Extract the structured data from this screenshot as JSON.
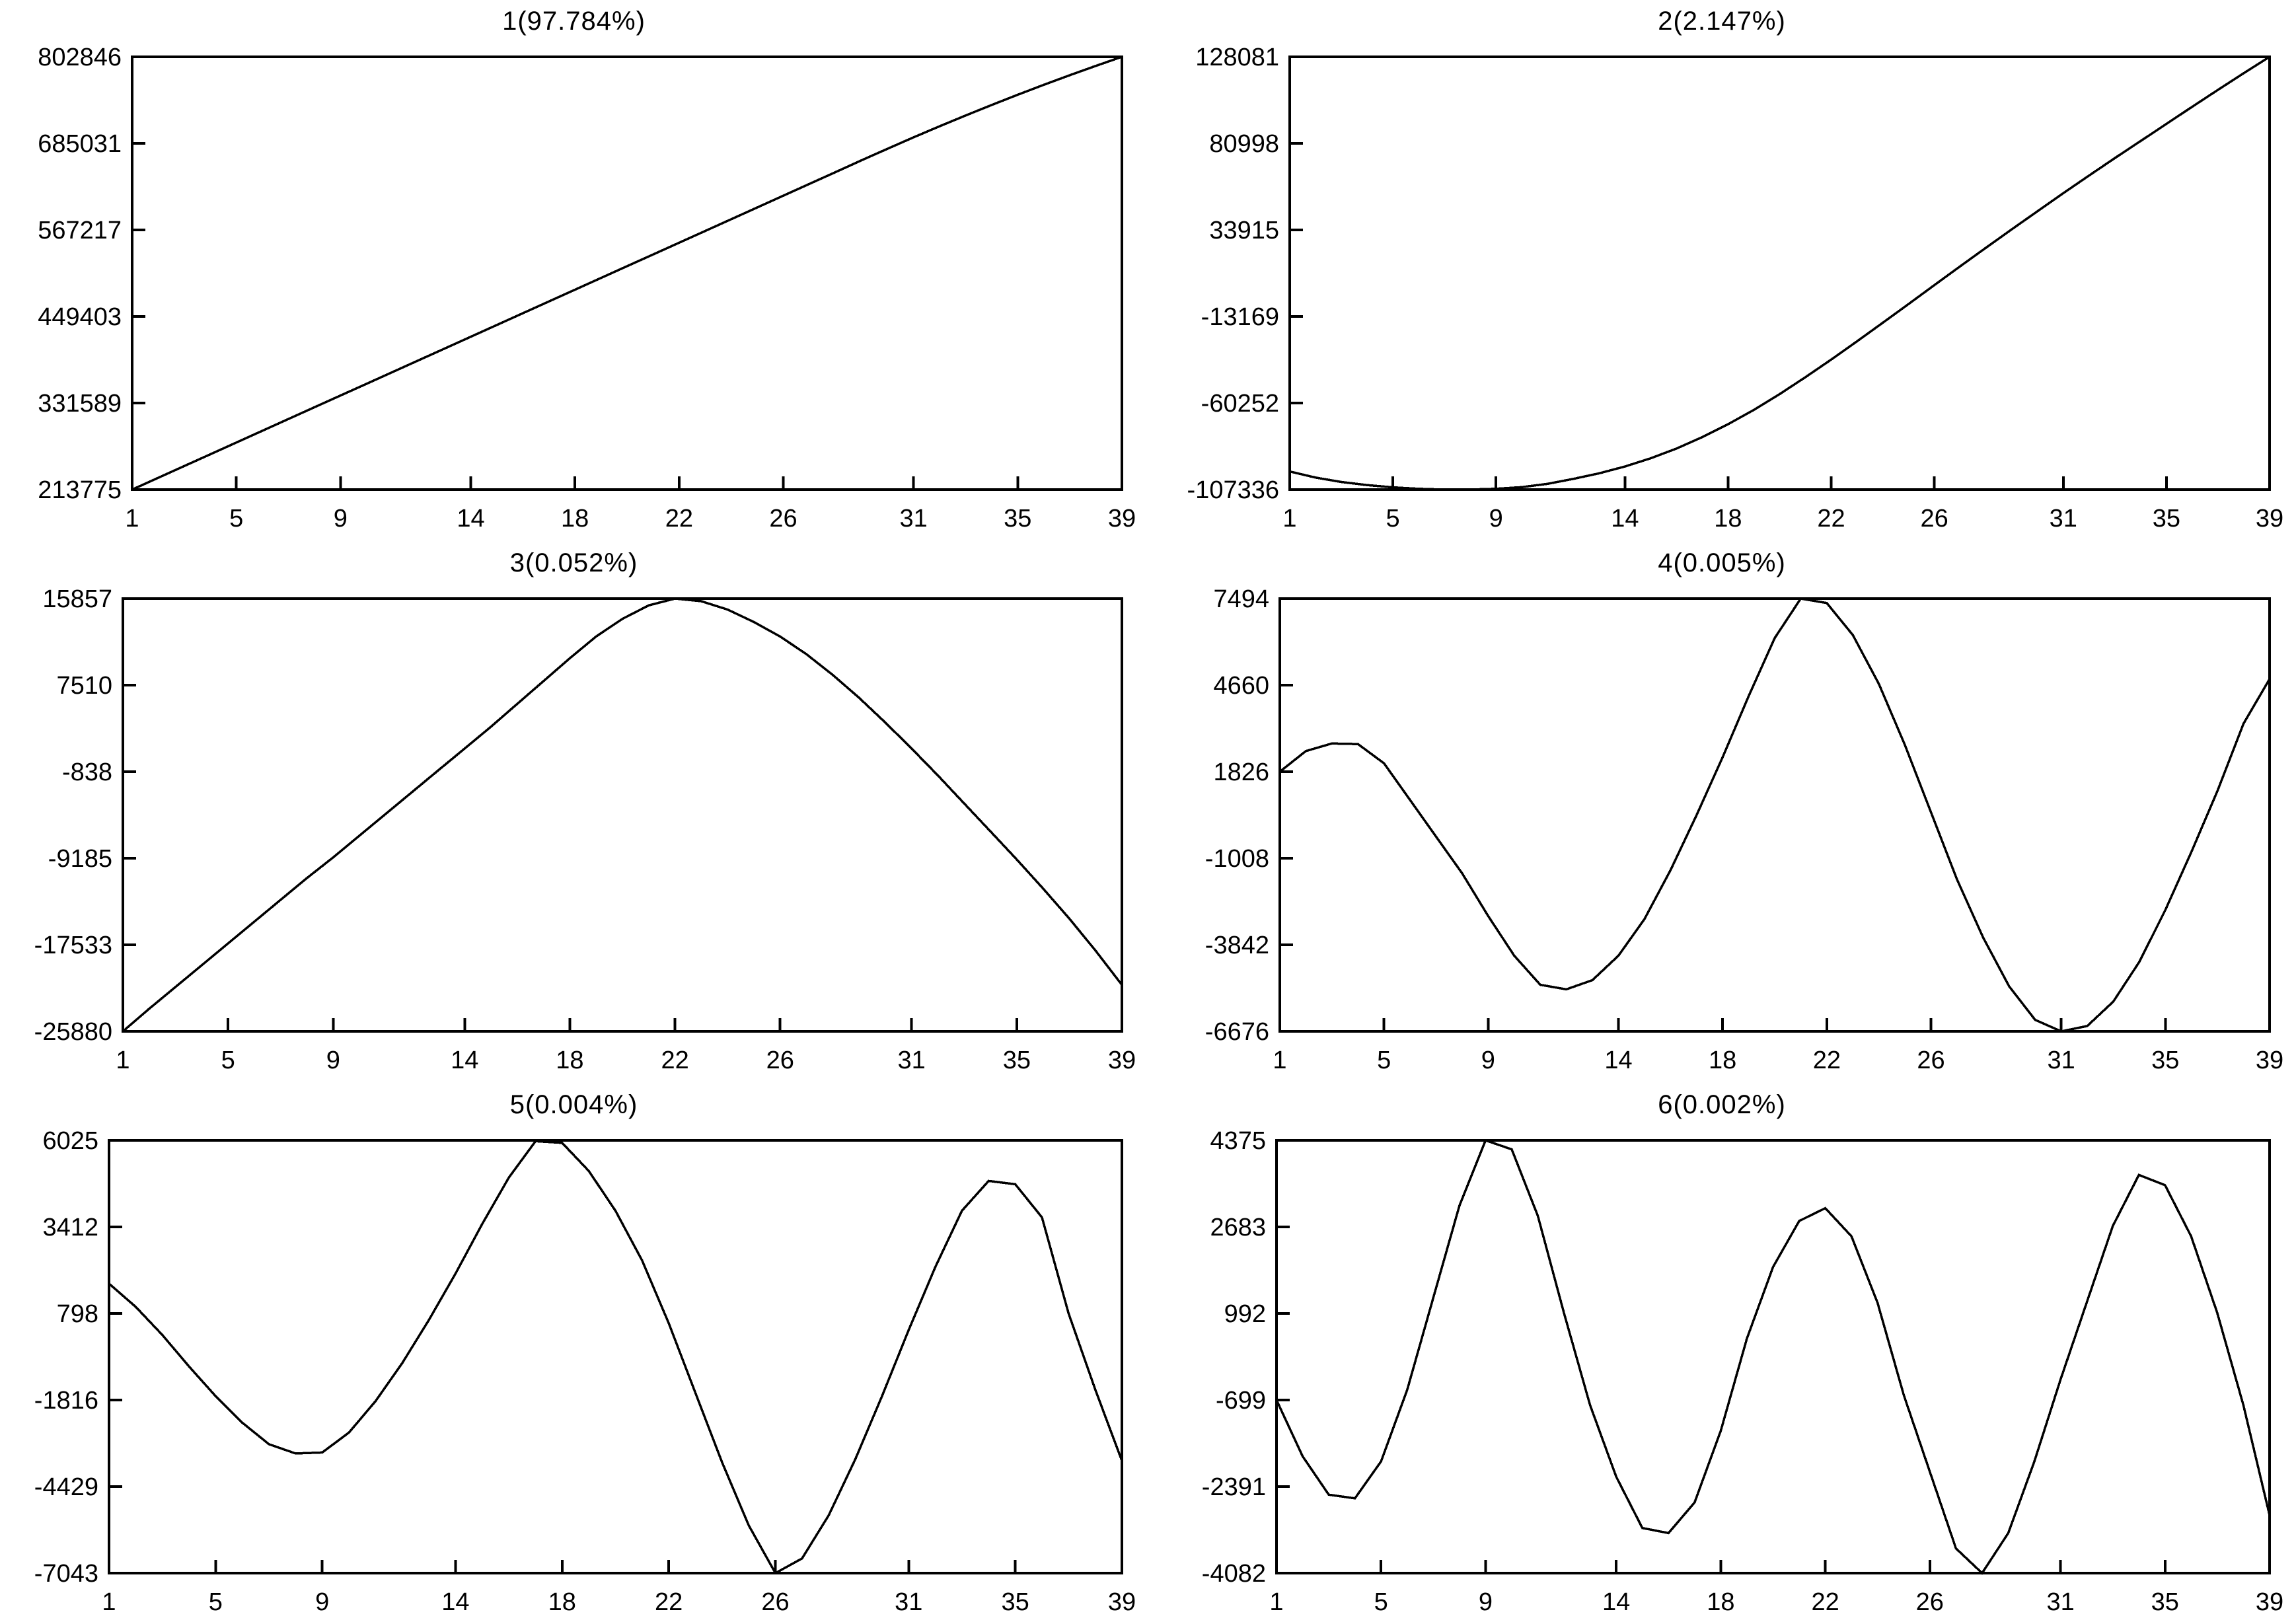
{
  "figure": {
    "background": "#ffffff",
    "ink": "#000000",
    "n_points": 39
  },
  "chart_data": [
    {
      "type": "line",
      "title": "1(97.784%)",
      "xlabel": "",
      "ylabel": "",
      "grid": false,
      "legend": "none",
      "xlim": [
        1,
        39
      ],
      "ylim": [
        213775,
        802846
      ],
      "x_ticks": [
        1,
        5,
        9,
        14,
        18,
        22,
        26,
        31,
        35,
        39
      ],
      "y_ticks": [
        802846,
        685031,
        567217,
        449403,
        331589,
        213775
      ],
      "x": [
        1,
        2,
        3,
        4,
        5,
        6,
        7,
        8,
        9,
        10,
        11,
        12,
        13,
        14,
        15,
        16,
        17,
        18,
        19,
        20,
        21,
        22,
        23,
        24,
        25,
        26,
        27,
        28,
        29,
        30,
        31,
        32,
        33,
        34,
        35,
        36,
        37,
        38,
        39
      ],
      "values": [
        213775,
        229800,
        245800,
        261800,
        277800,
        293800,
        309800,
        325800,
        341800,
        357800,
        373800,
        389800,
        405800,
        421800,
        437800,
        453800,
        469800,
        485800,
        501800,
        517800,
        533800,
        549800,
        565800,
        581800,
        597800,
        613800,
        629800,
        645800,
        661900,
        677700,
        693200,
        708300,
        723000,
        737300,
        751200,
        764700,
        777800,
        790500,
        802846
      ]
    },
    {
      "type": "line",
      "title": "2(2.147%)",
      "xlabel": "",
      "ylabel": "",
      "grid": false,
      "legend": "none",
      "xlim": [
        1,
        39
      ],
      "ylim": [
        -107336,
        128081
      ],
      "x_ticks": [
        1,
        5,
        9,
        14,
        18,
        22,
        26,
        31,
        35,
        39
      ],
      "y_ticks": [
        128081,
        80998,
        33915,
        -13169,
        -60252,
        -107336
      ],
      "x": [
        1,
        2,
        3,
        4,
        5,
        6,
        7,
        8,
        9,
        10,
        11,
        12,
        13,
        14,
        15,
        16,
        17,
        18,
        19,
        20,
        21,
        22,
        23,
        24,
        25,
        26,
        27,
        28,
        29,
        30,
        31,
        32,
        33,
        34,
        35,
        36,
        37,
        38,
        39
      ],
      "values": [
        -97500,
        -100800,
        -103200,
        -104900,
        -106100,
        -106900,
        -107336,
        -107300,
        -106900,
        -106000,
        -104200,
        -101500,
        -98500,
        -94800,
        -90300,
        -85000,
        -78800,
        -71800,
        -64000,
        -55400,
        -46200,
        -36600,
        -26700,
        -16600,
        -6400,
        3900,
        14100,
        24200,
        34200,
        44100,
        53900,
        63500,
        73000,
        82300,
        91600,
        100900,
        110100,
        119200,
        128081
      ]
    },
    {
      "type": "line",
      "title": "3(0.052%)",
      "xlabel": "",
      "ylabel": "",
      "grid": false,
      "legend": "none",
      "xlim": [
        1,
        39
      ],
      "ylim": [
        -25880,
        15857
      ],
      "x_ticks": [
        1,
        5,
        9,
        14,
        18,
        22,
        26,
        31,
        35,
        39
      ],
      "y_ticks": [
        15857,
        7510,
        -838,
        -9185,
        -17533,
        -25880
      ],
      "x": [
        1,
        2,
        3,
        4,
        5,
        6,
        7,
        8,
        9,
        10,
        11,
        12,
        13,
        14,
        15,
        16,
        17,
        18,
        19,
        20,
        21,
        22,
        23,
        24,
        25,
        26,
        27,
        28,
        29,
        30,
        31,
        32,
        33,
        34,
        35,
        36,
        37,
        38,
        39
      ],
      "values": [
        -25880,
        -23700,
        -21600,
        -19500,
        -17400,
        -15300,
        -13200,
        -11100,
        -9100,
        -7000,
        -4900,
        -2800,
        -700,
        1400,
        3500,
        5700,
        7900,
        10100,
        12200,
        13900,
        15200,
        15857,
        15600,
        14800,
        13600,
        12200,
        10500,
        8500,
        6300,
        3900,
        1400,
        -1200,
        -3900,
        -6600,
        -9300,
        -12100,
        -15000,
        -18100,
        -21400
      ]
    },
    {
      "type": "line",
      "title": "4(0.005%)",
      "xlabel": "",
      "ylabel": "",
      "grid": false,
      "legend": "none",
      "xlim": [
        1,
        39
      ],
      "ylim": [
        -6676,
        7494
      ],
      "x_ticks": [
        1,
        5,
        9,
        14,
        18,
        22,
        26,
        31,
        35,
        39
      ],
      "y_ticks": [
        7494,
        4660,
        1826,
        -1008,
        -3842,
        -6676
      ],
      "x": [
        1,
        2,
        3,
        4,
        5,
        6,
        7,
        8,
        9,
        10,
        11,
        12,
        13,
        14,
        15,
        16,
        17,
        18,
        19,
        20,
        21,
        22,
        23,
        24,
        25,
        26,
        27,
        28,
        29,
        30,
        31,
        32,
        33,
        34,
        35,
        36,
        37,
        38,
        39
      ],
      "values": [
        1826,
        2500,
        2750,
        2730,
        2100,
        900,
        -300,
        -1500,
        -2900,
        -4200,
        -5150,
        -5300,
        -5000,
        -4200,
        -3000,
        -1400,
        400,
        2300,
        4300,
        6200,
        7494,
        7350,
        6300,
        4700,
        2700,
        500,
        -1700,
        -3600,
        -5200,
        -6300,
        -6676,
        -6500,
        -5700,
        -4400,
        -2700,
        -800,
        1200,
        3400,
        4860
      ]
    },
    {
      "type": "line",
      "title": "5(0.004%)",
      "xlabel": "",
      "ylabel": "",
      "grid": false,
      "legend": "none",
      "xlim": [
        1,
        39
      ],
      "ylim": [
        -7043,
        6025
      ],
      "x_ticks": [
        1,
        5,
        9,
        14,
        18,
        22,
        26,
        31,
        35,
        39
      ],
      "y_ticks": [
        6025,
        3412,
        798,
        -1816,
        -4429,
        -7043
      ],
      "x": [
        1,
        2,
        3,
        4,
        5,
        6,
        7,
        8,
        9,
        10,
        11,
        12,
        13,
        14,
        15,
        16,
        17,
        18,
        19,
        20,
        21,
        22,
        23,
        24,
        25,
        26,
        27,
        28,
        29,
        30,
        31,
        32,
        33,
        34,
        35,
        36,
        37,
        38,
        39
      ],
      "values": [
        1700,
        1000,
        150,
        -800,
        -1700,
        -2500,
        -3150,
        -3430,
        -3400,
        -2800,
        -1850,
        -700,
        600,
        2000,
        3500,
        4900,
        6000,
        5950,
        5100,
        3900,
        2400,
        500,
        -1600,
        -3700,
        -5600,
        -7043,
        -6600,
        -5300,
        -3600,
        -1700,
        300,
        2200,
        3900,
        4800,
        4700,
        3700,
        800,
        -1500,
        -3650
      ]
    },
    {
      "type": "line",
      "title": "6(0.002%)",
      "xlabel": "",
      "ylabel": "",
      "grid": false,
      "legend": "none",
      "xlim": [
        1,
        39
      ],
      "ylim": [
        -4082,
        4375
      ],
      "x_ticks": [
        1,
        5,
        9,
        14,
        18,
        22,
        26,
        31,
        35,
        39
      ],
      "y_ticks": [
        4375,
        2683,
        992,
        -699,
        -2391,
        -4082
      ],
      "x": [
        1,
        2,
        3,
        4,
        5,
        6,
        7,
        8,
        9,
        10,
        11,
        12,
        13,
        14,
        15,
        16,
        17,
        18,
        19,
        20,
        21,
        22,
        23,
        24,
        25,
        26,
        27,
        28,
        29,
        30,
        31,
        32,
        33,
        34,
        35,
        36,
        37,
        38,
        39
      ],
      "values": [
        -699,
        -1800,
        -2550,
        -2620,
        -1900,
        -500,
        1300,
        3100,
        4375,
        4200,
        2900,
        1000,
        -800,
        -2200,
        -3200,
        -3300,
        -2700,
        -1300,
        500,
        1900,
        2800,
        3050,
        2500,
        1200,
        -600,
        -2100,
        -3600,
        -4082,
        -3300,
        -1900,
        -300,
        1200,
        2700,
        3700,
        3500,
        2500,
        1000,
        -800,
        -2950
      ]
    }
  ]
}
